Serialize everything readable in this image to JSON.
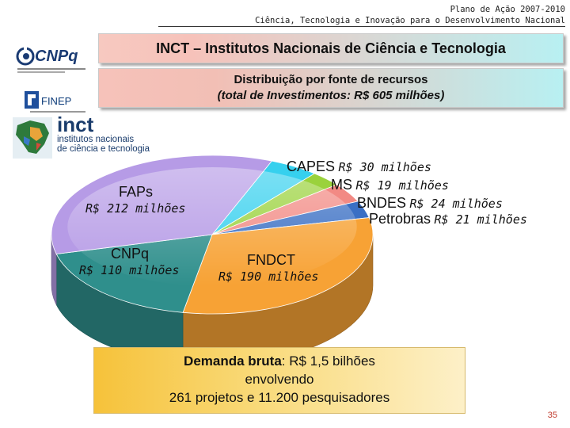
{
  "header": {
    "line1": "Plano de Ação 2007-2010",
    "line2": "Ciência, Tecnologia e Inovação para o Desenvolvimento Nacional"
  },
  "title": "INCT – Institutos Nacionais de Ciência e Tecnologia",
  "subtitle": {
    "line1": "Distribuição por fonte de recursos",
    "line2": "(total de Investimentos: R$ 605 milhões)"
  },
  "logos": {
    "cnpq": "CNPq",
    "finep": "FINEP",
    "inct_big": "inct",
    "inct_l1": "institutos nacionais",
    "inct_l2": "de ciência e tecnologia"
  },
  "chart_data": {
    "type": "pie",
    "title": "",
    "slices": [
      {
        "name": "CAPES",
        "value_label": "R$ 30 milhões",
        "value": 30,
        "color": "#36d0ee"
      },
      {
        "name": "MS",
        "value_label": "R$ 19 milhões",
        "value": 19,
        "color": "#9ad23c"
      },
      {
        "name": "BNDES",
        "value_label": "R$ 24 milhões",
        "value": 24,
        "color": "#f28a84"
      },
      {
        "name": "Petrobras",
        "value_label": "R$ 21 milhões",
        "value": 21,
        "color": "#3a6fc4"
      },
      {
        "name": "FNDCT",
        "value_label": "R$ 190 milhões",
        "value": 190,
        "color": "#f7a235"
      },
      {
        "name": "CNPq",
        "value_label": "R$ 110 milhões",
        "value": 110,
        "color": "#2f8f8c"
      },
      {
        "name": "FAPs",
        "value_label": "R$ 212 milhões",
        "value": 212,
        "color": "#b69be6"
      }
    ],
    "unit": "R$ milhões",
    "legend": "labels next to slices"
  },
  "demand": {
    "label": "Demanda bruta",
    "value": ":  R$ 1,5 bilhões",
    "line2": "envolvendo",
    "line3": "261  projetos  e  11.200  pesquisadores"
  },
  "page_number": "35"
}
